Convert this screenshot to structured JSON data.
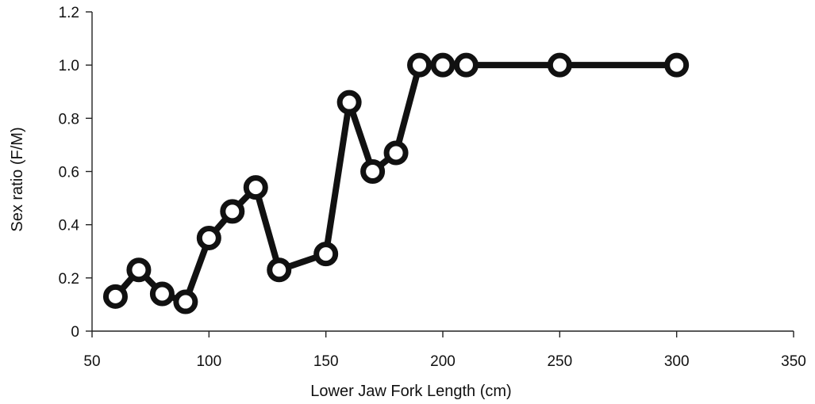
{
  "chart_data": {
    "type": "line",
    "title": "",
    "xlabel": "Lower Jaw Fork Length (cm)",
    "ylabel": "Sex ratio (F/M)",
    "xlim": [
      50,
      350
    ],
    "ylim": [
      0,
      1.2
    ],
    "xticks": [
      "50",
      "100",
      "150",
      "200",
      "250",
      "300",
      "350"
    ],
    "yticks": [
      "0",
      "0.2",
      "0.4",
      "0.6",
      "0.8",
      "1.0",
      "1.2"
    ],
    "grid": false,
    "legend": "none",
    "series": [
      {
        "color": "#111111",
        "points": [
          {
            "x": 60,
            "y": 0.13
          },
          {
            "x": 70,
            "y": 0.23
          },
          {
            "x": 80,
            "y": 0.14
          },
          {
            "x": 90,
            "y": 0.11
          },
          {
            "x": 100,
            "y": 0.35
          },
          {
            "x": 110,
            "y": 0.45
          },
          {
            "x": 120,
            "y": 0.54
          },
          {
            "x": 130,
            "y": 0.23
          },
          {
            "x": 150,
            "y": 0.29
          },
          {
            "x": 160,
            "y": 0.86
          },
          {
            "x": 170,
            "y": 0.6
          },
          {
            "x": 180,
            "y": 0.67
          },
          {
            "x": 190,
            "y": 1.0
          },
          {
            "x": 200,
            "y": 1.0
          },
          {
            "x": 210,
            "y": 1.0
          },
          {
            "x": 250,
            "y": 1.0
          },
          {
            "x": 300,
            "y": 1.0
          }
        ]
      }
    ]
  }
}
